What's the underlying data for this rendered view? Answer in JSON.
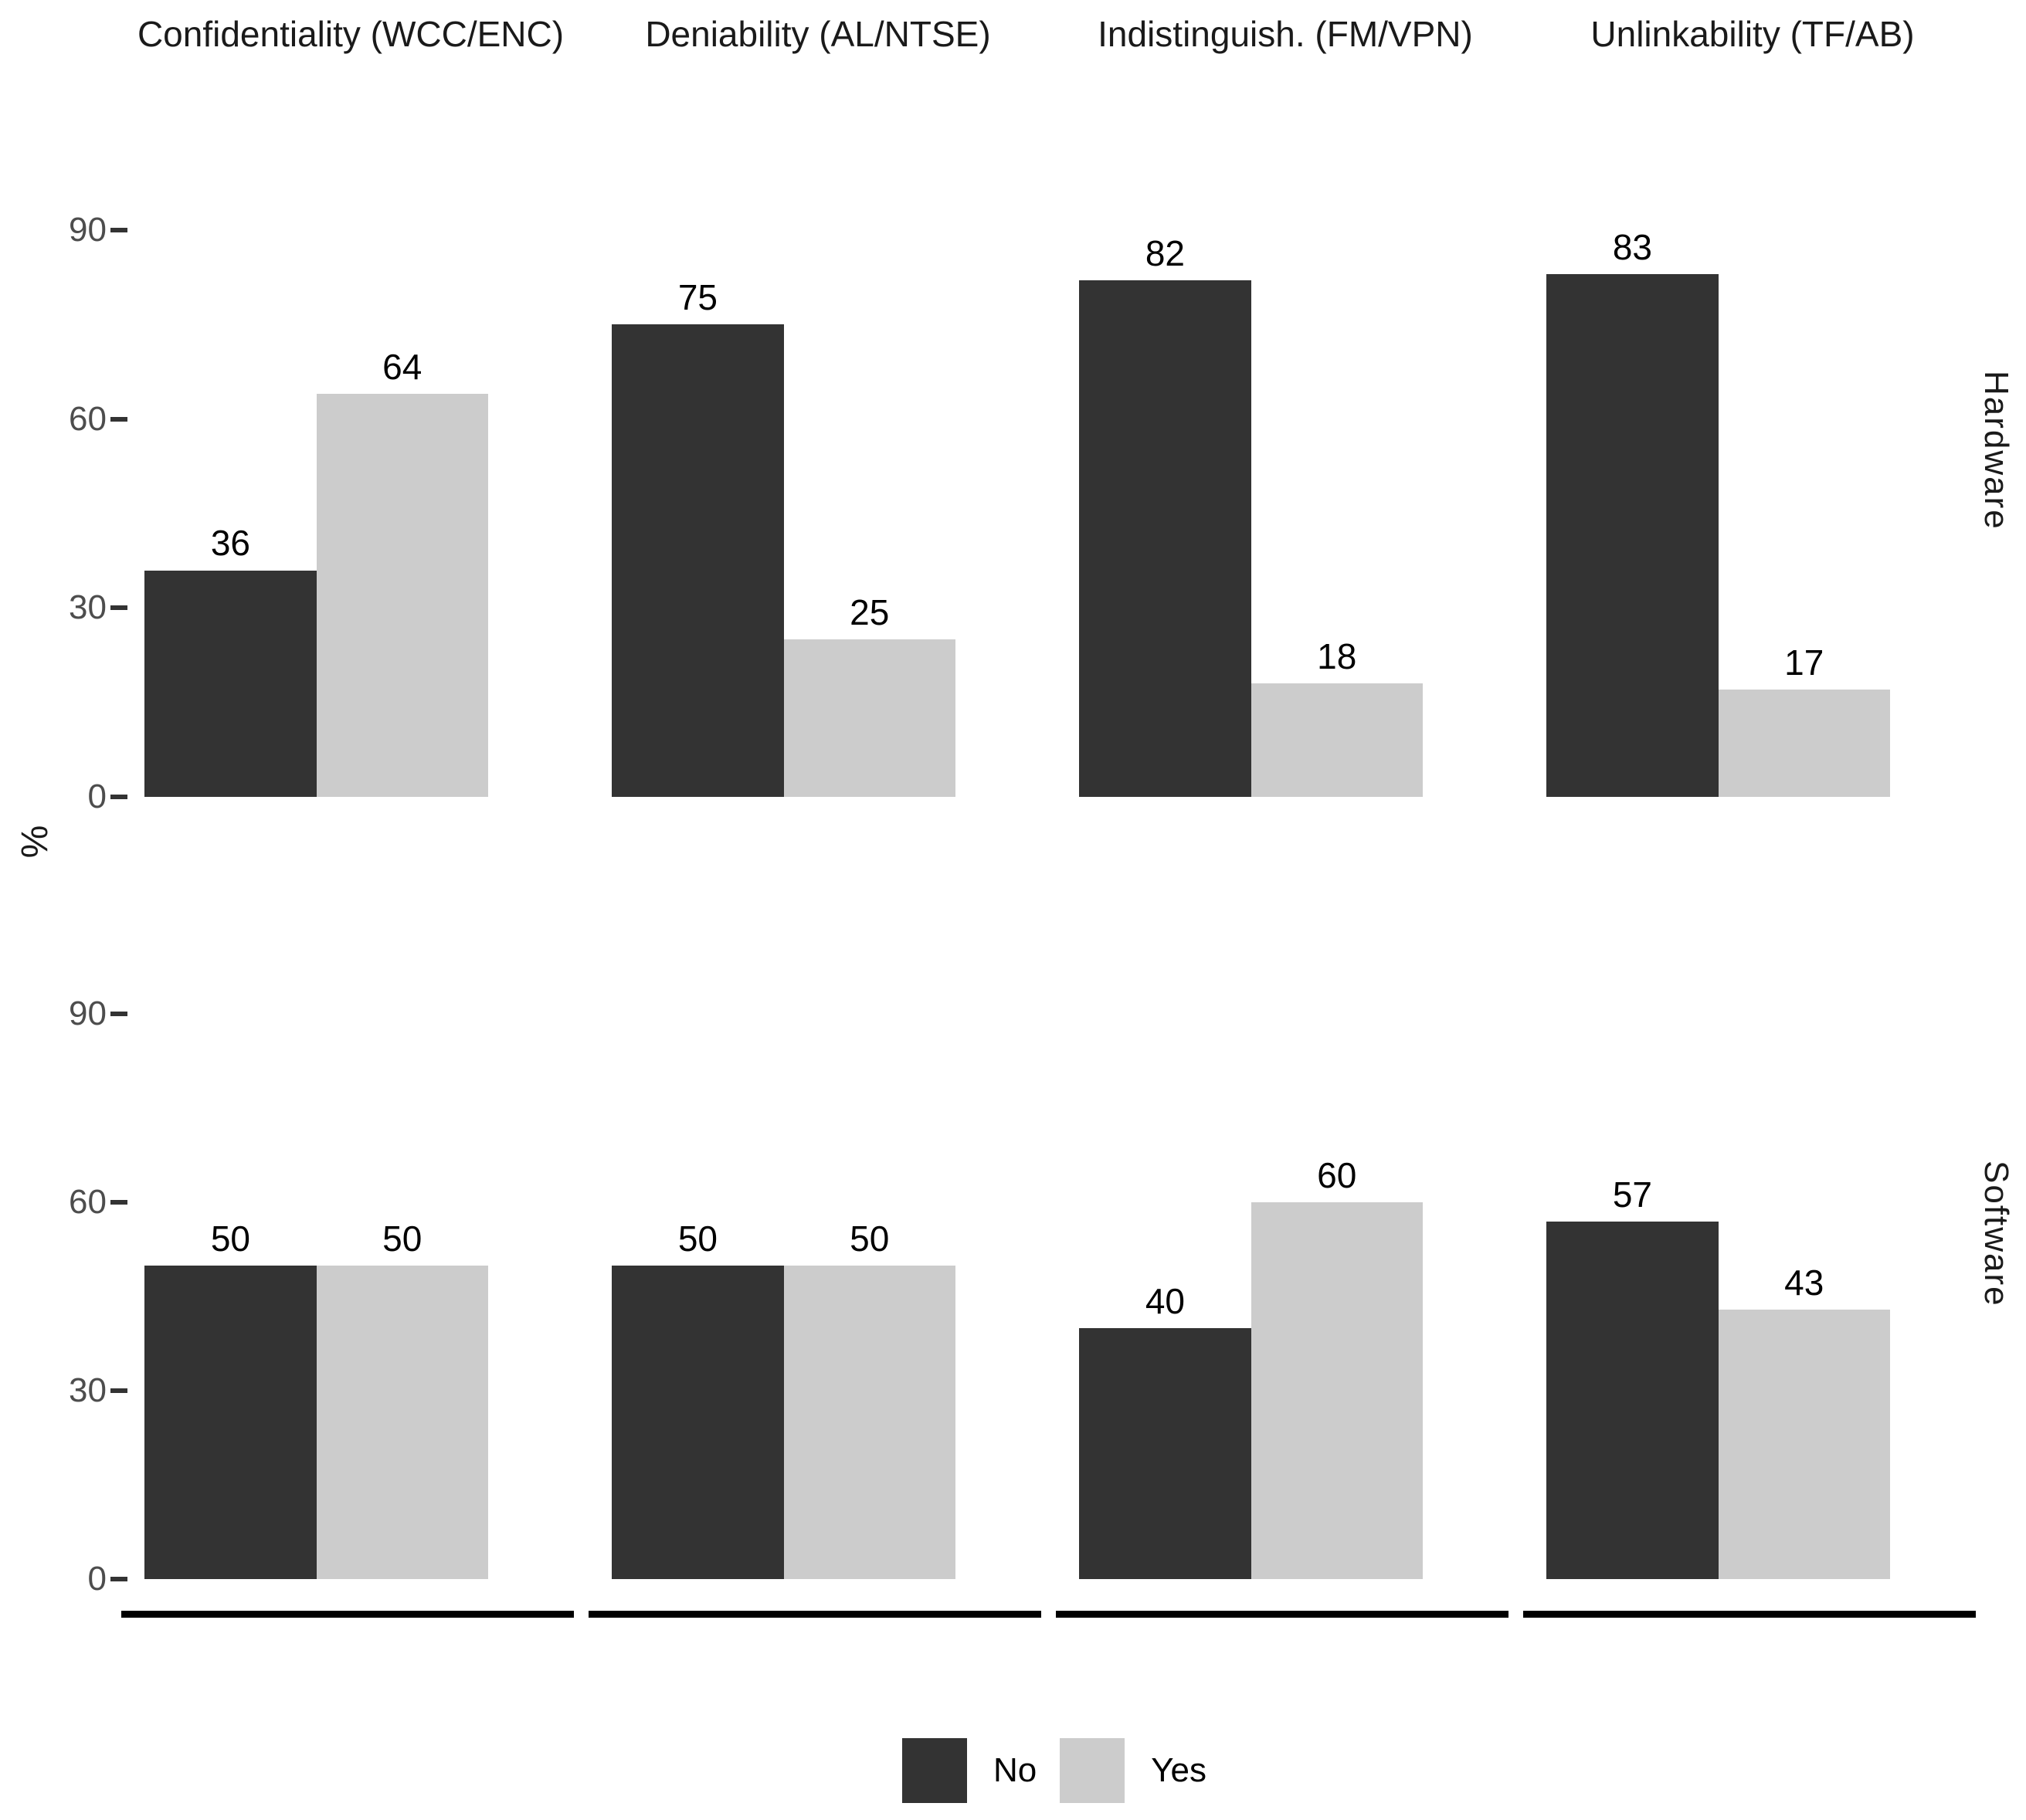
{
  "chart_data": {
    "type": "bar",
    "title": "",
    "ylabel": "%",
    "col_facets": [
      "Confidentiality (WCC/ENC)",
      "Deniability (AL/NTSE)",
      "Indistinguish. (FM/VPN)",
      "Unlinkability (TF/AB)"
    ],
    "row_facets": [
      "Hardware",
      "Software"
    ],
    "series": [
      {
        "name": "No",
        "color": "#333333"
      },
      {
        "name": "Yes",
        "color": "#cccccc"
      }
    ],
    "yticks": [
      0,
      30,
      60,
      90
    ],
    "ylim": [
      0,
      110
    ],
    "panel_value_range": [
      -5.5,
      115.5
    ],
    "grid": "off",
    "legend_position": "bottom",
    "values": [
      {
        "row": "Hardware",
        "groups": [
          {
            "facet": "Confidentiality (WCC/ENC)",
            "No": 36,
            "Yes": 64
          },
          {
            "facet": "Deniability (AL/NTSE)",
            "No": 75,
            "Yes": 25
          },
          {
            "facet": "Indistinguish. (FM/VPN)",
            "No": 82,
            "Yes": 18
          },
          {
            "facet": "Unlinkability (TF/AB)",
            "No": 83,
            "Yes": 17
          }
        ]
      },
      {
        "row": "Software",
        "groups": [
          {
            "facet": "Confidentiality (WCC/ENC)",
            "No": 50,
            "Yes": 50
          },
          {
            "facet": "Deniability (AL/NTSE)",
            "No": 50,
            "Yes": 50
          },
          {
            "facet": "Indistinguish. (FM/VPN)",
            "No": 40,
            "Yes": 60
          },
          {
            "facet": "Unlinkability (TF/AB)",
            "No": 57,
            "Yes": 43
          }
        ]
      }
    ]
  }
}
